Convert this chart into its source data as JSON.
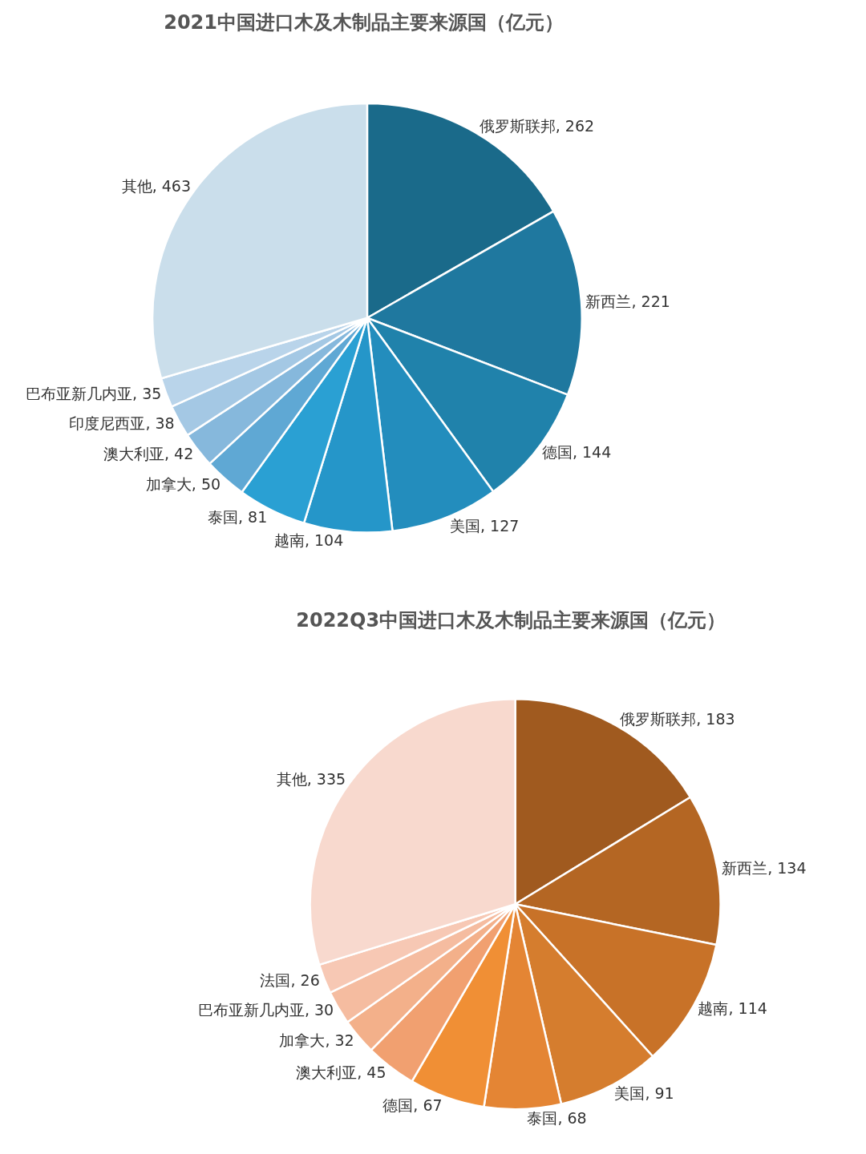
{
  "chart_data": [
    {
      "type": "pie",
      "title": "2021中国进口木及木制品主要来源国（亿元）",
      "categories": [
        "俄罗斯联邦",
        "新西兰",
        "德国",
        "美国",
        "越南",
        "泰国",
        "加拿大",
        "澳大利亚",
        "印度尼西亚",
        "巴布亚新几内亚",
        "其他"
      ],
      "values": [
        262,
        221,
        144,
        127,
        104,
        81,
        50,
        42,
        38,
        35,
        463
      ],
      "value_labels": [
        ", 262",
        ", 221",
        ", 144",
        ", 127",
        ", 104",
        ", 81",
        ", 50",
        ", 42",
        ", 38",
        ", 35",
        ", 463"
      ],
      "colors": [
        "#1a6a8a",
        "#1f789f",
        "#2082ab",
        "#238dbd",
        "#2596c9",
        "#2aa0d3",
        "#5fa8d4",
        "#86b8dc",
        "#a4c8e4",
        "#b9d4ea",
        "#cadeeb"
      ]
    },
    {
      "type": "pie",
      "title": "2022Q3中国进口木及木制品主要来源国（亿元）",
      "categories": [
        "俄罗斯联邦",
        "新西兰",
        "越南",
        "美国",
        "泰国",
        "德国",
        "澳大利亚",
        "加拿大",
        "巴布亚新几内亚",
        "法国",
        "其他"
      ],
      "values": [
        183,
        134,
        114,
        91,
        68,
        67,
        45,
        32,
        30,
        26,
        335
      ],
      "value_labels": [
        ", 183",
        ", 134",
        ", 114",
        ", 91",
        ", 68",
        ", 67",
        ", 45",
        ", 32",
        ", 30",
        ", 26",
        ", 335"
      ],
      "colors": [
        "#a05a1f",
        "#b46623",
        "#c87228",
        "#d57d2e",
        "#e48534",
        "#f08f35",
        "#f1a070",
        "#f3b08a",
        "#f5bca0",
        "#f7c8b4",
        "#f8d9ce"
      ]
    }
  ]
}
